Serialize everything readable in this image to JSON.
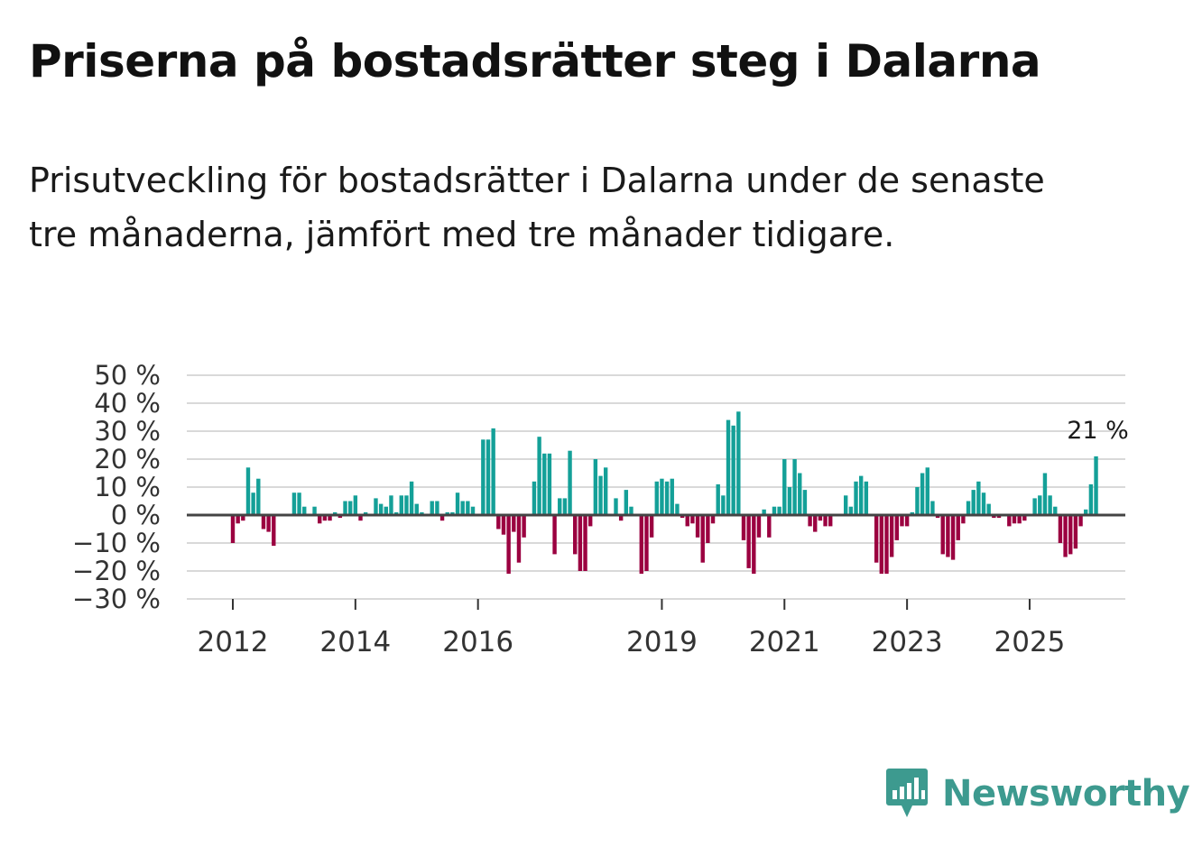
{
  "title": "Priserna på bostadsrätter steg i Dalarna",
  "subtitle": "Prisutveckling för bostadsrätter i Dalarna under de senaste tre månaderna, jämfört med tre månader tidigare.",
  "brand": {
    "name": "Newsworthy",
    "color": "#3d9a8f"
  },
  "colors": {
    "positive": "#14a098",
    "negative": "#9b0040",
    "grid": "#d9d9d9",
    "zero": "#444444"
  },
  "chart_data": {
    "type": "bar",
    "title": "Priserna på bostadsrätter steg i Dalarna",
    "xlabel": "",
    "ylabel": "",
    "ylim": [
      -30,
      50
    ],
    "yticks": [
      50,
      40,
      30,
      20,
      10,
      0,
      -10,
      -20,
      -30
    ],
    "ytick_labels": [
      "50 %",
      "40 %",
      "30 %",
      "20 %",
      "10 %",
      "0 %",
      "−10 %",
      "−20 %",
      "−30 %"
    ],
    "xticks": [
      {
        "label": "2012",
        "index": 12
      },
      {
        "label": "2014",
        "index": 36
      },
      {
        "label": "2016",
        "index": 60
      },
      {
        "label": "2019",
        "index": 96
      },
      {
        "label": "2021",
        "index": 120
      },
      {
        "label": "2023",
        "index": 144
      },
      {
        "label": "2025",
        "index": 168
      }
    ],
    "n_slots": 176,
    "start_index": 12,
    "values": [
      -10,
      -3,
      -2,
      17,
      8,
      13,
      -5,
      -6,
      -11,
      0,
      0,
      0,
      8,
      8,
      3,
      0,
      3,
      -3,
      -2,
      -2,
      1,
      -1,
      5,
      5,
      7,
      -2,
      1,
      0,
      6,
      4,
      3,
      7,
      1,
      7,
      7,
      12,
      4,
      1,
      0,
      5,
      5,
      -2,
      1,
      1,
      8,
      5,
      5,
      3,
      0,
      27,
      27,
      31,
      -5,
      -7,
      -21,
      -6,
      -17,
      -8,
      0,
      12,
      28,
      22,
      22,
      -14,
      6,
      6,
      23,
      -14,
      -20,
      -20,
      -4,
      20,
      14,
      17,
      0,
      6,
      -2,
      9,
      3,
      0,
      -21,
      -20,
      -8,
      12,
      13,
      12,
      13,
      4,
      -1,
      -4,
      -3,
      -8,
      -17,
      -10,
      -3,
      11,
      7,
      34,
      32,
      37,
      -9,
      -19,
      -21,
      -8,
      2,
      -8,
      3,
      3,
      20,
      10,
      20,
      15,
      9,
      -4,
      -6,
      -2,
      -4,
      -4,
      0,
      0,
      7,
      3,
      12,
      14,
      12,
      0,
      -17,
      -21,
      -21,
      -15,
      -9,
      -4,
      -4,
      1,
      10,
      15,
      17,
      5,
      -1,
      -14,
      -15,
      -16,
      -9,
      -3,
      5,
      9,
      12,
      8,
      4,
      -1,
      -1,
      0,
      -4,
      -3,
      -3,
      -2,
      0,
      6,
      7,
      15,
      7,
      3,
      -10,
      -15,
      -14,
      -12,
      -4,
      2,
      11,
      21
    ],
    "annotation": {
      "label": "21 %",
      "value": 21
    }
  }
}
